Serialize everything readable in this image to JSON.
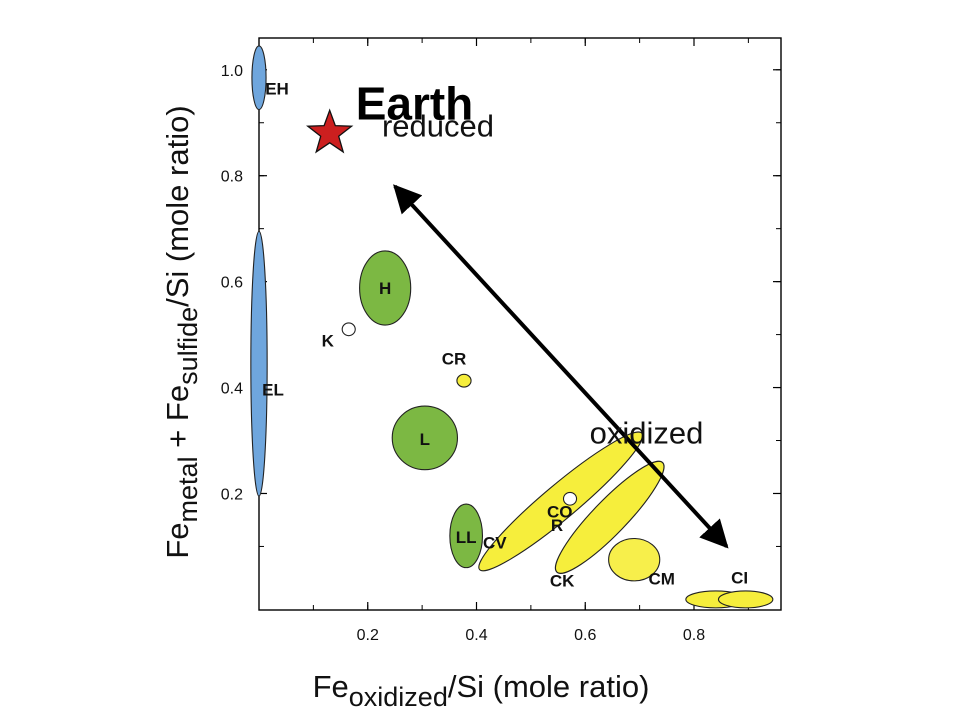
{
  "chart_data": {
    "type": "scatter",
    "xlabel": {
      "main": "Fe",
      "sub": "oxidized",
      "tail": "/Si  (mole ratio)"
    },
    "ylabel": {
      "p1": "Fe",
      "s1": "metal",
      "p2": " + Fe",
      "s2": "sulfide",
      "tail": "/Si  (mole ratio)"
    },
    "xlim": [
      0,
      0.96
    ],
    "ylim": [
      -0.02,
      1.06
    ],
    "x_ticks": [
      "0.2",
      "0.4",
      "0.6",
      "0.8"
    ],
    "y_ticks": [
      "0.2",
      "0.4",
      "0.6",
      "0.8",
      "1.0"
    ],
    "groups": [
      {
        "label": "EH",
        "cx": 0.0,
        "cy": 0.985,
        "rx": 0.013,
        "ry": 0.06,
        "angle": 0,
        "color": "#6fa6dd"
      },
      {
        "label": "EL",
        "cx": 0.0,
        "cy": 0.445,
        "rx": 0.015,
        "ry": 0.25,
        "angle": 0,
        "color": "#6fa6dd"
      },
      {
        "label": "H",
        "cx": 0.232,
        "cy": 0.588,
        "rx": 0.047,
        "ry": 0.07,
        "angle": 0,
        "color": "#7cb843"
      },
      {
        "label": "L",
        "cx": 0.305,
        "cy": 0.305,
        "rx": 0.06,
        "ry": 0.06,
        "angle": 0,
        "color": "#7cb843"
      },
      {
        "label": "LL",
        "cx": 0.381,
        "cy": 0.12,
        "rx": 0.03,
        "ry": 0.06,
        "angle": 0,
        "color": "#7cb843"
      },
      {
        "label": "CV",
        "cx": 0.555,
        "cy": 0.185,
        "rx": 0.195,
        "ry": 0.032,
        "angle": 40,
        "color": "#f6ee3c"
      },
      {
        "label": "CO",
        "cx": 0.645,
        "cy": 0.155,
        "rx": 0.14,
        "ry": 0.032,
        "angle": 46,
        "color": "#f6ee3c"
      },
      {
        "label": "CK",
        "cx": 0.69,
        "cy": 0.075,
        "rx": 0.047,
        "ry": 0.04,
        "angle": 0,
        "color": "#f6ee3c"
      },
      {
        "label": "CM",
        "cx": 0.84,
        "cy": 0.0,
        "rx": 0.055,
        "ry": 0.016,
        "angle": 0,
        "color": "#f6ee3c"
      },
      {
        "label": "CI",
        "cx": 0.895,
        "cy": 0.0,
        "rx": 0.05,
        "ry": 0.016,
        "angle": 0,
        "color": "#f6ee3c"
      },
      {
        "label": "CR",
        "cx": 0.377,
        "cy": 0.413,
        "rx": 0.013,
        "ry": 0.012,
        "angle": 0,
        "color": "#f6ee3c"
      },
      {
        "label": "K",
        "cx": 0.165,
        "cy": 0.51,
        "rx": 0.012,
        "ry": 0.012,
        "angle": 0,
        "color": "#ffffff"
      },
      {
        "label": "R",
        "cx": 0.572,
        "cy": 0.19,
        "rx": 0.012,
        "ry": 0.012,
        "angle": 0,
        "color": "#ffffff"
      }
    ],
    "earth": {
      "label": "Earth",
      "x": 0.13,
      "y": 0.88,
      "color": "#cc1f1f"
    },
    "arrow": {
      "from": [
        0.86,
        0.1
      ],
      "to": [
        0.25,
        0.78
      ],
      "start_label": "reduced",
      "end_label": "oxidized"
    }
  }
}
